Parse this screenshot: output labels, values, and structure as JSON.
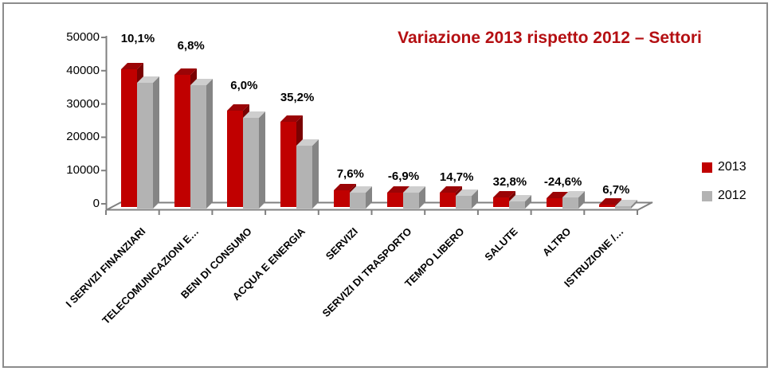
{
  "title": {
    "text": "Variazione 2013 rispetto 2012 – Settori",
    "color": "#b40f12"
  },
  "chart_data": {
    "type": "bar",
    "style": "3d-clustered-column",
    "title": "Variazione 2013 rispetto 2012 – Settori",
    "categories": [
      "I SERVIZI FINANZIARI",
      "TELECOMUNICAZIONI E…",
      "BENI DI CONSUMO",
      "ACQUA E ENERGIA",
      "SERVIZI",
      "SERVIZI DI TRASPORTO",
      "TEMPO LIBERO",
      "SALUTE",
      "ALTRO",
      "ISTRUZIONE /…"
    ],
    "series": [
      {
        "name": "2013",
        "color": "#c00000",
        "color_top": "#9b0406",
        "color_side": "#7a0202",
        "values": [
          41500,
          39600,
          28900,
          25600,
          5100,
          4400,
          4300,
          2900,
          2600,
          800
        ]
      },
      {
        "name": "2012",
        "color": "#b3b3b3",
        "color_top": "#cecece",
        "color_side": "#858585",
        "values": [
          37700,
          37100,
          27300,
          18900,
          4740,
          4730,
          3750,
          2180,
          3450,
          750
        ]
      }
    ],
    "data_labels": [
      "10,1%",
      "6,8%",
      "6,0%",
      "35,2%",
      "7,6%",
      "-6,9%",
      "14,7%",
      "32,8%",
      "-24,6%",
      "6,7%"
    ],
    "data_labels_meaning": "variation 2013 vs 2012 per sector",
    "ylim": [
      0,
      50000
    ],
    "yticks": [
      0,
      10000,
      20000,
      30000,
      40000,
      50000
    ],
    "ytick_labels": [
      "0",
      "10000",
      "20000",
      "30000",
      "40000",
      "50000"
    ],
    "xlabel": "",
    "ylabel": "",
    "grid": false,
    "legend_position": "right",
    "axis_color": "#808080"
  }
}
